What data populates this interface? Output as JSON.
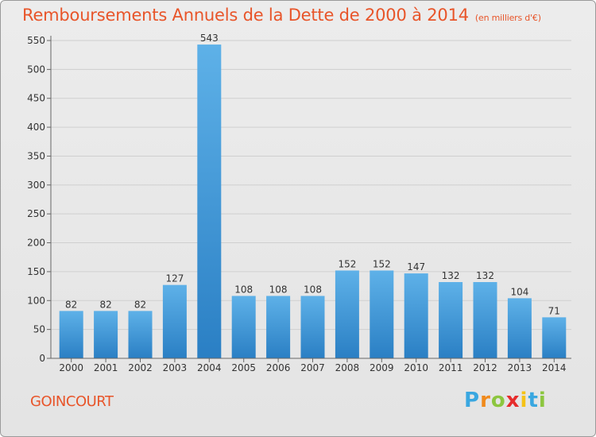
{
  "title": "Remboursements Annuels de la Dette de 2000 à 2014",
  "subtitle": "(en milliers d'€)",
  "commune": "GOINCOURT",
  "logo": {
    "letters": [
      "P",
      "r",
      "o",
      "x",
      "i",
      "t",
      "i"
    ],
    "colors": [
      "#3aa7e0",
      "#f08a1c",
      "#8cc63f",
      "#e62c2c",
      "#f5c216",
      "#3aa7e0",
      "#8cc63f"
    ]
  },
  "colors": {
    "bar_top": "#5eb1e8",
    "bar_bottom": "#2a7fc4",
    "title": "#e8552a"
  },
  "chart_data": {
    "type": "bar",
    "categories": [
      "2000",
      "2001",
      "2002",
      "2003",
      "2004",
      "2005",
      "2006",
      "2007",
      "2008",
      "2009",
      "2010",
      "2011",
      "2012",
      "2013",
      "2014"
    ],
    "values": [
      82,
      82,
      82,
      127,
      543,
      108,
      108,
      108,
      152,
      152,
      147,
      132,
      132,
      104,
      71
    ],
    "ylim": [
      0,
      550
    ],
    "yticks": [
      0,
      50,
      100,
      150,
      200,
      250,
      300,
      350,
      400,
      450,
      500,
      550
    ],
    "grid": true
  }
}
